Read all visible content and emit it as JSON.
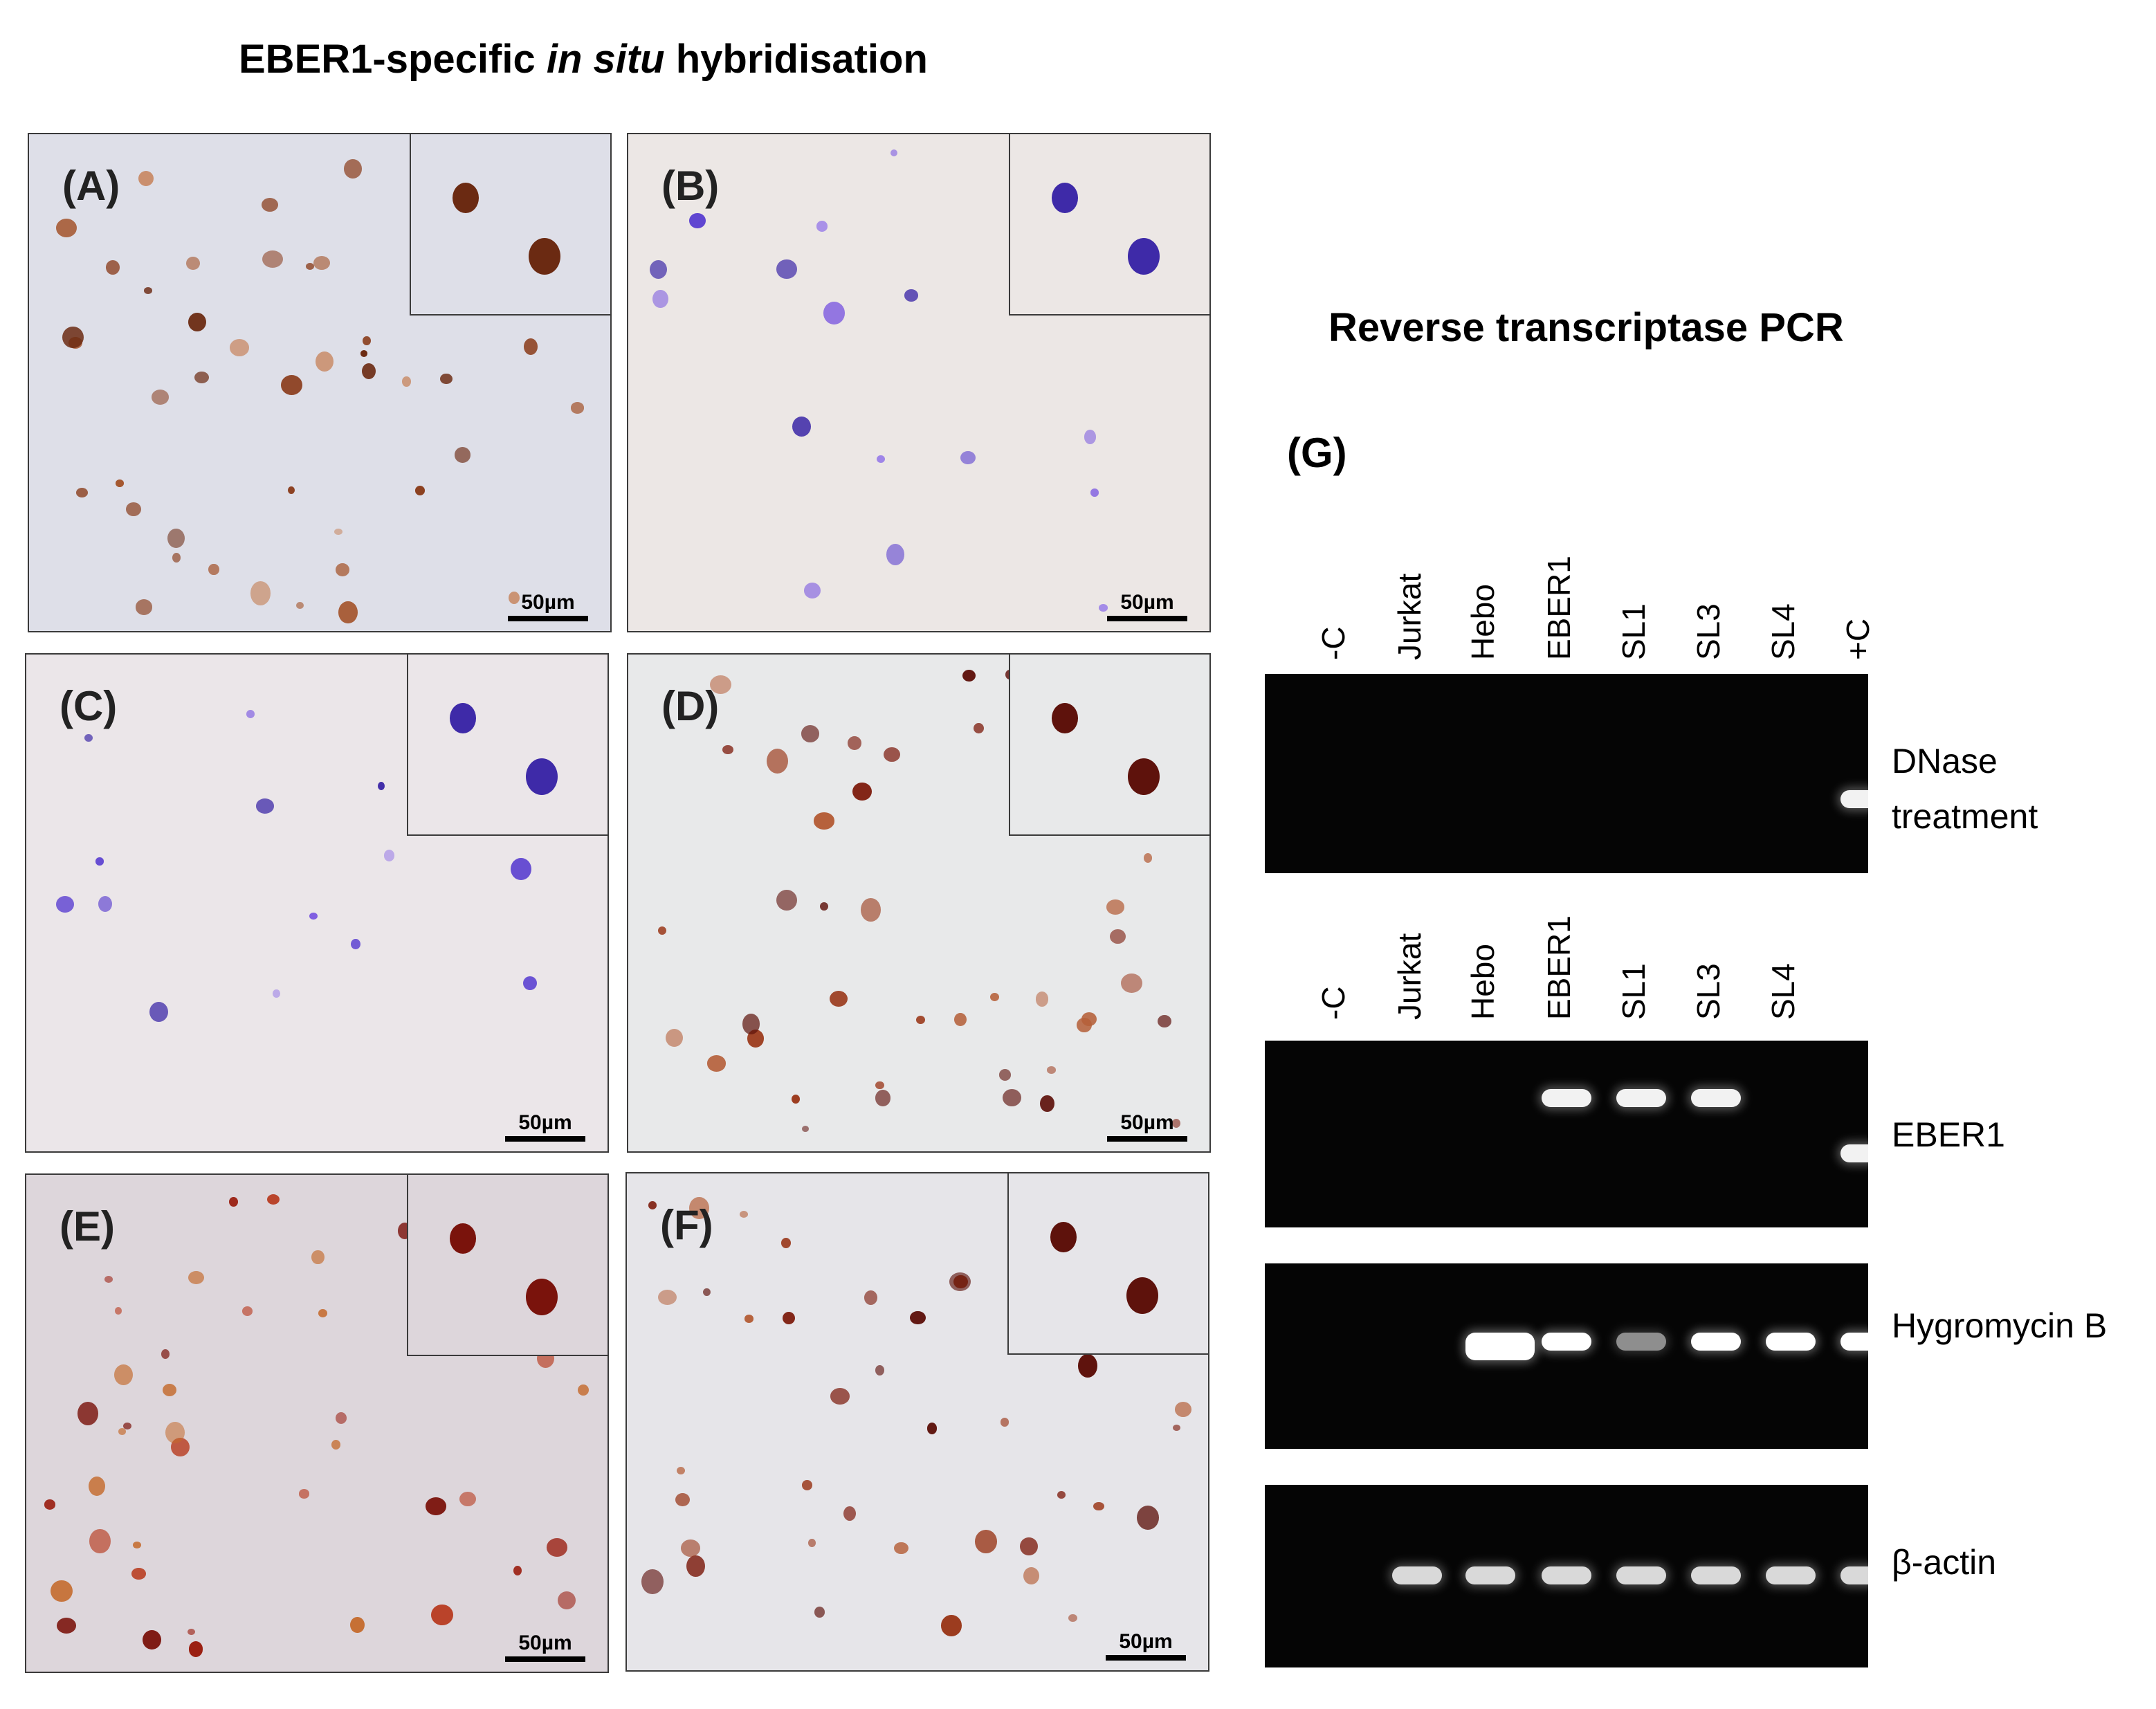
{
  "titles": {
    "ish_prefix": "EBER1-specific ",
    "ish_italic": "in situ",
    "ish_suffix": " hybridisation",
    "rt_pcr": "Reverse transcriptase PCR"
  },
  "panels": [
    {
      "label": "(A)",
      "scale": "50µm",
      "stain": "brown",
      "background": "#dedfe8"
    },
    {
      "label": "(B)",
      "scale": "50µm",
      "stain": "purple",
      "background": "#ece7e5"
    },
    {
      "label": "(C)",
      "scale": "50µm",
      "stain": "purple",
      "background": "#ebe6e9"
    },
    {
      "label": "(D)",
      "scale": "50µm",
      "stain": "red-brown",
      "background": "#e8e9ea"
    },
    {
      "label": "(E)",
      "scale": "50µm",
      "stain": "red",
      "background": "#ddd6db"
    },
    {
      "label": "(F)",
      "scale": "50µm",
      "stain": "red-brown",
      "background": "#e6e5e9"
    }
  ],
  "gel_panel": {
    "label": "(G)",
    "lanes_top": [
      "-C",
      "Jurkat",
      "Hebo",
      "EBER1",
      "SL1",
      "SL3",
      "SL4",
      "+C"
    ],
    "lanes_bottom": [
      "-C",
      "Jurkat",
      "Hebo",
      "EBER1",
      "SL1",
      "SL3",
      "SL4"
    ],
    "gels": [
      {
        "name_line1": "DNase",
        "name_line2": "treatment",
        "bands_present": [
          false,
          false,
          false,
          false,
          false,
          false,
          false,
          true
        ]
      },
      {
        "name_line1": "EBER1",
        "name_line2": "",
        "bands_present": [
          false,
          false,
          false,
          true,
          true,
          true,
          false,
          true
        ]
      },
      {
        "name_line1": "Hygromycin B",
        "name_line2": "",
        "bands_present": [
          false,
          false,
          true,
          true,
          true,
          true,
          true,
          true
        ]
      },
      {
        "name_line1": "β-actin",
        "name_line2": "",
        "bands_present": [
          false,
          true,
          true,
          true,
          true,
          true,
          true,
          true
        ]
      }
    ]
  }
}
